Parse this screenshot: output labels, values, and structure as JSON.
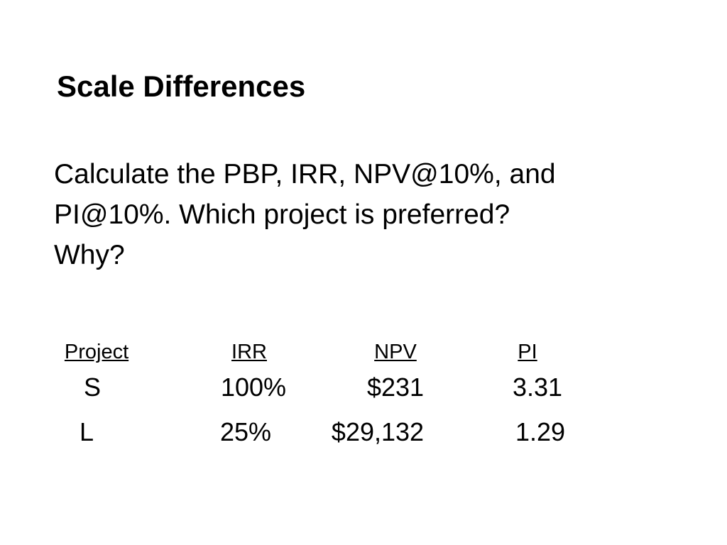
{
  "title": "Scale Differences",
  "body": {
    "lines": [
      "Calculate the PBP, IRR, NPV@10%, and",
      "PI@10%. Which project is preferred?",
      "Why?"
    ]
  },
  "table": {
    "header": [
      "Project",
      "IRR",
      "NPV",
      "PI"
    ],
    "rows": [
      [
        "S",
        "100%",
        "$231",
        "3.31"
      ],
      [
        "L",
        "25%",
        "$29,132",
        "1.29"
      ]
    ]
  }
}
